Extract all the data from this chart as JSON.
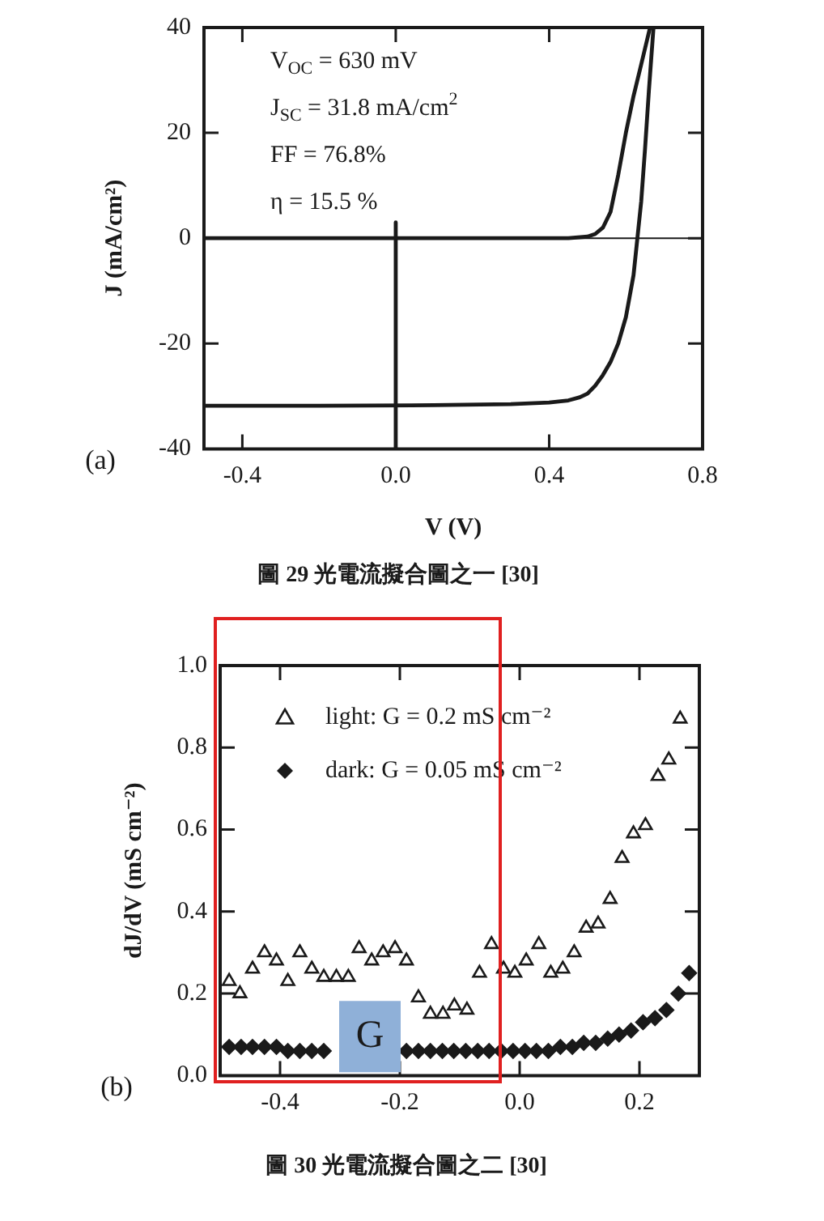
{
  "chart_data": [
    {
      "type": "line",
      "title": "圖 29 光電流擬合圖之一 [30]",
      "xlabel": "V (V)",
      "ylabel": "J (mA/cm²)",
      "xlim": [
        -0.5,
        0.8
      ],
      "xticks": [
        -0.4,
        {
          "value": 0,
          "label": "0.0"
        },
        0.4,
        0.8
      ],
      "ylim": [
        -40,
        40
      ],
      "yticks": [
        -40,
        -20,
        0,
        20,
        40
      ],
      "grid": false,
      "legend": false,
      "marker": "none",
      "line_style": "solid",
      "series": [
        {
          "color": "#1a1a1a",
          "x": [
            -0.5,
            -0.2,
            0.1,
            0.3,
            0.4,
            0.45,
            0.48,
            0.5,
            0.52,
            0.54,
            0.56,
            0.58,
            0.6,
            0.62,
            0.63,
            0.64,
            0.65,
            0.66,
            0.672
          ],
          "values": [
            -31.8,
            -31.8,
            -31.7,
            -31.5,
            -31.2,
            -30.8,
            -30.2,
            -29.5,
            -28,
            -26,
            -23.5,
            -20,
            -15,
            -7,
            0,
            7,
            17,
            28,
            40
          ]
        },
        {
          "color": "#1a1a1a",
          "x": [
            -0.5,
            0,
            0.3,
            0.45,
            0.5,
            0.52,
            0.54,
            0.56,
            0.58,
            0.6,
            0.62,
            0.64,
            0.663
          ],
          "values": [
            0,
            0,
            0,
            0,
            0.3,
            0.8,
            2,
            5,
            12,
            20,
            27,
            33,
            40
          ]
        },
        {
          "type": "line",
          "color": "#1a1a1a",
          "x": [
            0,
            0
          ],
          "values": [
            -40,
            3
          ]
        }
      ],
      "ref_lines": [
        {
          "axis": "y",
          "value": 0,
          "color": "#1a1a1a"
        }
      ],
      "annotations": [
        "V$_{OC}$ = 630 mV",
        "J$_{SC}$ = 31.8 mA/cm$^{2}$",
        "FF = 76.8%",
        "η = 15.5 %",
        "(a)"
      ]
    },
    {
      "type": "scatter",
      "title": "圖 30 光電流擬合圖之二 [30]",
      "ylabel": "dJ/dV (mS cm⁻²)",
      "xlim": [
        -0.5,
        0.3
      ],
      "xticks": [
        -0.4,
        -0.2,
        {
          "value": 0,
          "label": "0.0"
        },
        0.2
      ],
      "ylim": [
        0,
        1
      ],
      "yticks": [
        {
          "value": 0,
          "label": "0.0"
        },
        0.2,
        0.4,
        0.6,
        0.8,
        {
          "value": 1,
          "label": "1.0"
        }
      ],
      "grid": false,
      "legend": "top left",
      "series": [
        {
          "name": "light: G = 0.2 mS cm⁻²",
          "color": "#1a1a1a",
          "marker": "triangle",
          "x": [
            -0.485,
            -0.467,
            -0.446,
            -0.426,
            -0.406,
            -0.387,
            -0.367,
            -0.347,
            -0.327,
            -0.306,
            -0.286,
            -0.268,
            -0.247,
            -0.228,
            -0.208,
            -0.189,
            -0.169,
            -0.149,
            -0.128,
            -0.109,
            -0.088,
            -0.067,
            -0.047,
            -0.027,
            -0.008,
            0.011,
            0.032,
            0.052,
            0.072,
            0.091,
            0.111,
            0.131,
            0.151,
            0.171,
            0.19,
            0.21,
            0.231,
            0.249,
            0.268
          ],
          "values": [
            0.23,
            0.2,
            0.26,
            0.3,
            0.28,
            0.23,
            0.3,
            0.26,
            0.24,
            0.24,
            0.24,
            0.31,
            0.28,
            0.3,
            0.31,
            0.28,
            0.19,
            0.15,
            0.15,
            0.17,
            0.16,
            0.25,
            0.32,
            0.26,
            0.25,
            0.28,
            0.32,
            0.25,
            0.26,
            0.3,
            0.36,
            0.37,
            0.43,
            0.53,
            0.59,
            0.61,
            0.73,
            0.77,
            0.87
          ]
        },
        {
          "name": "dark: G = 0.05 mS cm⁻²",
          "color": "#1a1a1a",
          "marker": "diamond",
          "x": [
            -0.485,
            -0.465,
            -0.446,
            -0.426,
            -0.406,
            -0.387,
            -0.367,
            -0.347,
            -0.327,
            -0.307,
            -0.287,
            -0.268,
            -0.248,
            -0.228,
            -0.208,
            -0.189,
            -0.169,
            -0.149,
            -0.129,
            -0.11,
            -0.09,
            -0.07,
            -0.051,
            -0.031,
            -0.011,
            0.009,
            0.028,
            0.048,
            0.068,
            0.088,
            0.107,
            0.127,
            0.147,
            0.166,
            0.186,
            0.206,
            0.226,
            0.245,
            0.265,
            0.283
          ],
          "values": [
            0.07,
            0.07,
            0.07,
            0.07,
            0.07,
            0.06,
            0.06,
            0.06,
            0.06,
            null,
            null,
            null,
            null,
            null,
            null,
            0.06,
            0.06,
            0.06,
            0.06,
            0.06,
            0.06,
            0.06,
            0.06,
            0.06,
            0.06,
            0.06,
            0.06,
            0.06,
            0.07,
            0.07,
            0.08,
            0.08,
            0.09,
            0.1,
            0.11,
            0.13,
            0.14,
            0.16,
            0.2,
            0.25
          ]
        }
      ],
      "annotations": [
        {
          "text": "G",
          "x": -0.25,
          "y": 0.095
        },
        "(b)"
      ]
    }
  ]
}
